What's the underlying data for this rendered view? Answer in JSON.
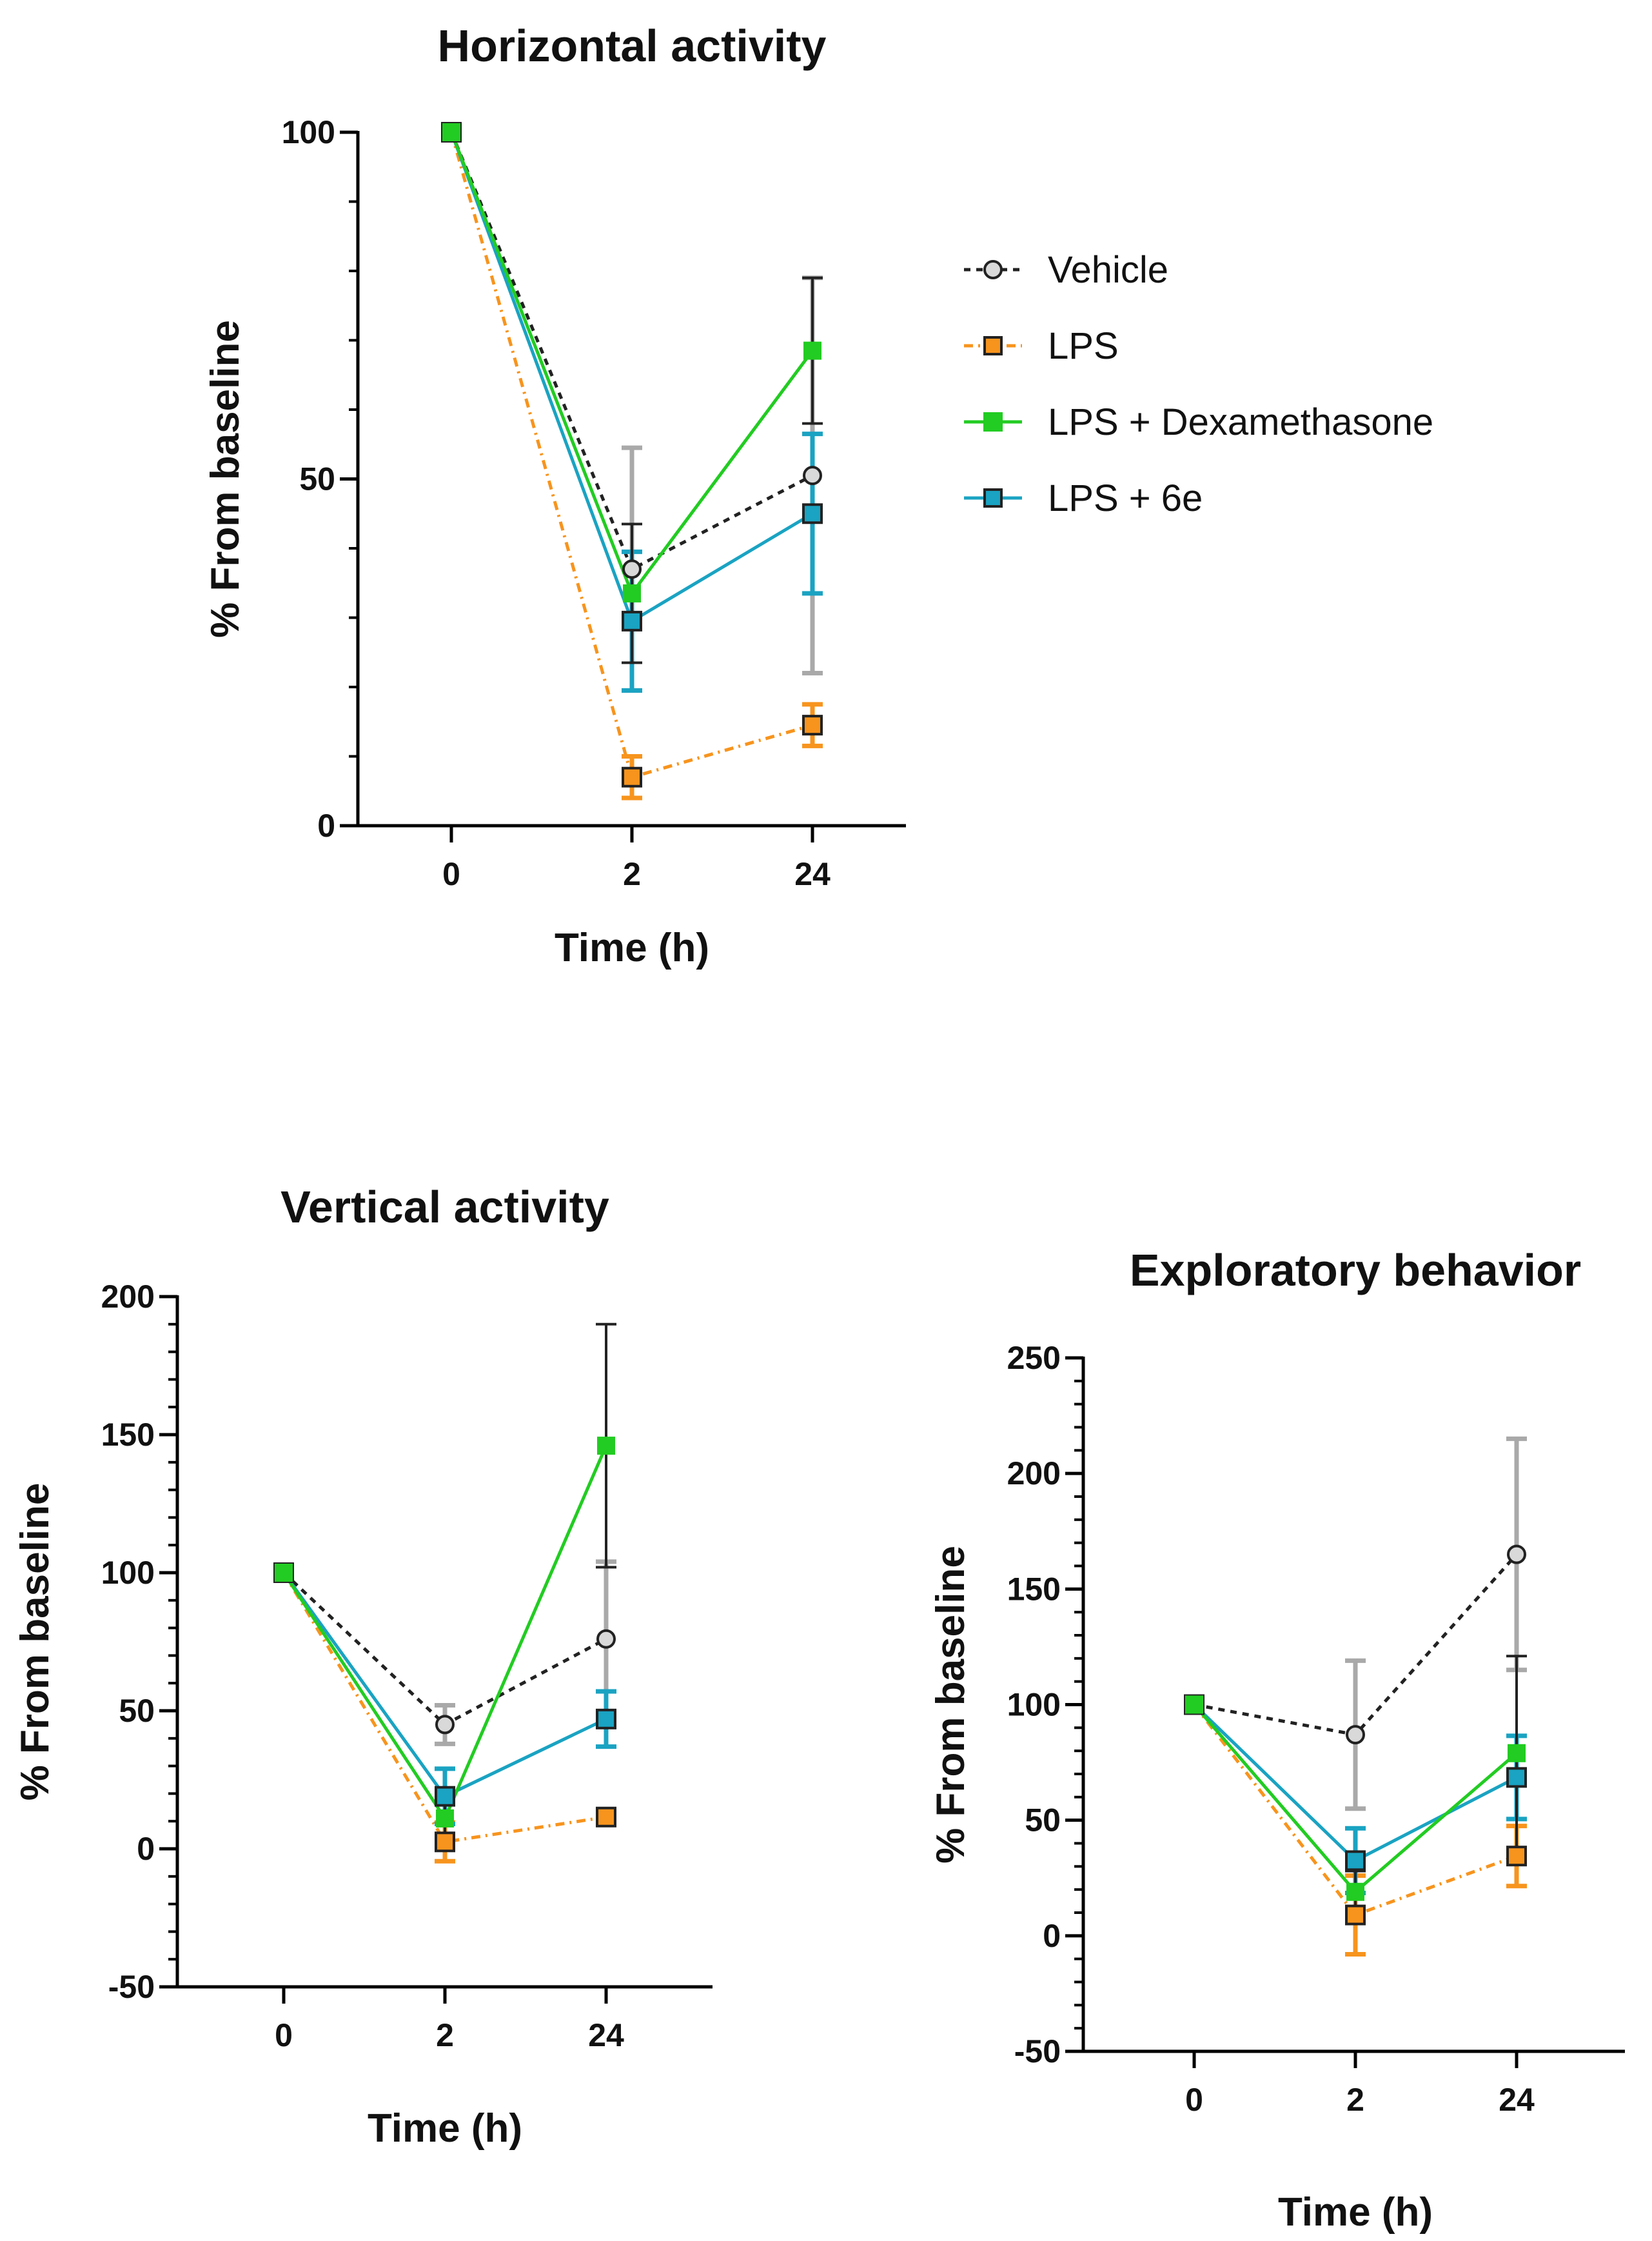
{
  "chart_data": [
    {
      "id": "horizontal",
      "type": "line",
      "title": "Horizontal activity",
      "xlabel": "Time (h)",
      "ylabel": "% From baseline",
      "categories": [
        "0",
        "2",
        "24"
      ],
      "ylim": [
        0,
        100
      ],
      "yticks": [
        0,
        50,
        100
      ],
      "yticks_labels": [
        "0",
        "50",
        "100"
      ],
      "series": [
        {
          "name": "Vehicle",
          "values": [
            100,
            37,
            50.5
          ],
          "errors": [
            0,
            17.5,
            28.5
          ]
        },
        {
          "name": "LPS",
          "values": [
            100,
            7,
            14.5
          ],
          "errors": [
            0,
            3,
            3
          ]
        },
        {
          "name": "LPS + Dexamethasone",
          "values": [
            100,
            33.5,
            68.5
          ],
          "errors": [
            0,
            10,
            10.5
          ]
        },
        {
          "name": "LPS + 6e",
          "values": [
            100,
            29.5,
            45
          ],
          "errors": [
            0,
            10,
            11.5
          ]
        }
      ]
    },
    {
      "id": "vertical",
      "type": "line",
      "title": "Vertical activity",
      "xlabel": "Time (h)",
      "ylabel": "% From baseline",
      "categories": [
        "0",
        "2",
        "24"
      ],
      "ylim": [
        -50,
        200
      ],
      "yticks": [
        -50,
        0,
        50,
        100,
        150,
        200
      ],
      "yticks_labels": [
        "-50",
        "0",
        "50",
        "100",
        "150",
        "200"
      ],
      "series": [
        {
          "name": "Vehicle",
          "values": [
            100,
            45,
            76
          ],
          "errors": [
            0,
            7,
            28
          ]
        },
        {
          "name": "LPS",
          "values": [
            100,
            2.5,
            11.5
          ],
          "errors": [
            0,
            7,
            1
          ]
        },
        {
          "name": "LPS + Dexamethasone",
          "values": [
            100,
            11,
            146
          ],
          "errors": [
            0,
            10,
            44
          ]
        },
        {
          "name": "LPS + 6e",
          "values": [
            100,
            19,
            47
          ],
          "errors": [
            0,
            10,
            10
          ]
        }
      ]
    },
    {
      "id": "exploratory",
      "type": "line",
      "title": "Exploratory behavior",
      "xlabel": "Time (h)",
      "ylabel": "% From baseline",
      "categories": [
        "0",
        "2",
        "24"
      ],
      "ylim": [
        -50,
        250
      ],
      "yticks": [
        -50,
        0,
        50,
        100,
        150,
        200,
        250
      ],
      "yticks_labels": [
        "-50",
        "0",
        "50",
        "100",
        "150",
        "200",
        "250"
      ],
      "series": [
        {
          "name": "Vehicle",
          "values": [
            100,
            87,
            165
          ],
          "errors": [
            0,
            32,
            50
          ]
        },
        {
          "name": "LPS",
          "values": [
            100,
            9,
            34.5
          ],
          "errors": [
            0,
            17,
            13
          ]
        },
        {
          "name": "LPS + Dexamethasone",
          "values": [
            100,
            19,
            79
          ],
          "errors": [
            0,
            9,
            42
          ]
        },
        {
          "name": "LPS + 6e",
          "values": [
            100,
            32.5,
            68.5
          ],
          "errors": [
            0,
            14,
            18
          ]
        }
      ]
    }
  ],
  "legend": {
    "items": [
      "Vehicle",
      "LPS",
      "LPS + Dexamethasone",
      "LPS + 6e"
    ],
    "placement": "right of top chart"
  },
  "styles": {
    "Vehicle": {
      "line": "#222222",
      "fill": "#d9d9d9",
      "stroke": "#222222",
      "err": "#a9a9a9",
      "dash": "10,9",
      "marker": "circle"
    },
    "LPS": {
      "line": "#f7941d",
      "fill": "#f7941d",
      "stroke": "#222222",
      "err": "#f7941d",
      "dash": "14,8,3,8",
      "marker": "square"
    },
    "LPS + Dexamethasone": {
      "line": "#22cc22",
      "fill": "#22cc22",
      "stroke": "#22cc22",
      "err": "#222222",
      "dash": "",
      "marker": "square"
    },
    "LPS + 6e": {
      "line": "#1aa3c2",
      "fill": "#1aa3c2",
      "stroke": "#222222",
      "err": "#1aa3c2",
      "dash": "",
      "marker": "square"
    }
  }
}
